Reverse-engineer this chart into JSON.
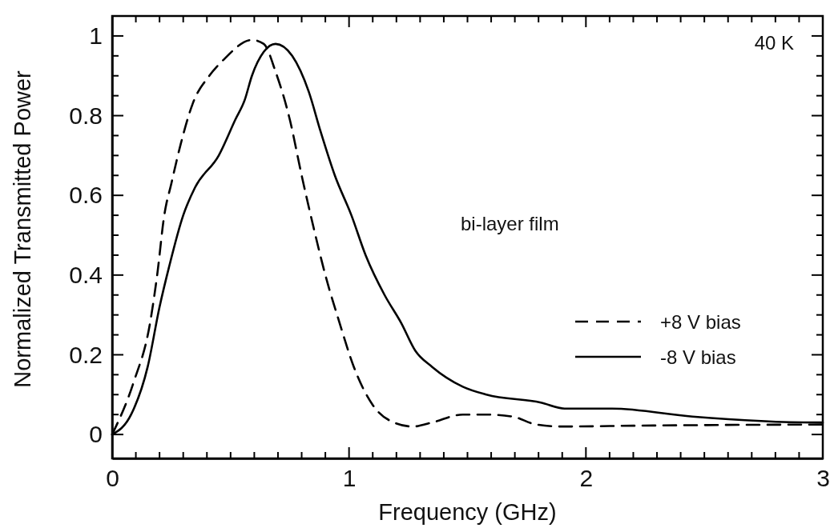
{
  "chart_data": {
    "type": "line",
    "xlabel": "Frequency (GHz)",
    "ylabel": "Normalized Transmitted Power",
    "xlim": [
      0,
      3
    ],
    "ylim": [
      -0.06,
      1.05
    ],
    "xticks": [
      0,
      {
        "value": 0.1,
        "label": null
      },
      {
        "value": 0.2,
        "label": null
      },
      {
        "value": 0.3,
        "label": null
      },
      {
        "value": 0.4,
        "label": null
      },
      {
        "value": 0.5,
        "label": null
      },
      {
        "value": 0.6,
        "label": null
      },
      {
        "value": 0.7,
        "label": null
      },
      {
        "value": 0.8,
        "label": null
      },
      {
        "value": 0.9,
        "label": null
      },
      1,
      {
        "value": 1.1,
        "label": null
      },
      {
        "value": 1.2,
        "label": null
      },
      {
        "value": 1.3,
        "label": null
      },
      {
        "value": 1.4,
        "label": null
      },
      {
        "value": 1.5,
        "label": null
      },
      {
        "value": 1.6,
        "label": null
      },
      {
        "value": 1.7,
        "label": null
      },
      {
        "value": 1.8,
        "label": null
      },
      {
        "value": 1.9,
        "label": null
      },
      2,
      {
        "value": 2.1,
        "label": null
      },
      {
        "value": 2.2,
        "label": null
      },
      {
        "value": 2.3,
        "label": null
      },
      {
        "value": 2.4,
        "label": null
      },
      {
        "value": 2.5,
        "label": null
      },
      {
        "value": 2.6,
        "label": null
      },
      {
        "value": 2.7,
        "label": null
      },
      {
        "value": 2.8,
        "label": null
      },
      {
        "value": 2.9,
        "label": null
      },
      3
    ],
    "yticks": [
      0,
      {
        "value": 0.05,
        "label": null
      },
      {
        "value": 0.1,
        "label": null
      },
      {
        "value": 0.15,
        "label": null
      },
      0.2,
      {
        "value": 0.25,
        "label": null
      },
      {
        "value": 0.3,
        "label": null
      },
      {
        "value": 0.35,
        "label": null
      },
      0.4,
      {
        "value": 0.45,
        "label": null
      },
      {
        "value": 0.5,
        "label": null
      },
      {
        "value": 0.55,
        "label": null
      },
      0.6,
      {
        "value": 0.65,
        "label": null
      },
      {
        "value": 0.7,
        "label": null
      },
      {
        "value": 0.75,
        "label": null
      },
      0.8,
      {
        "value": 0.85,
        "label": null
      },
      {
        "value": 0.9,
        "label": null
      },
      {
        "value": 0.95,
        "label": null
      },
      1
    ],
    "grid": false,
    "legend": "bottom right",
    "annotations": [
      "40 K",
      "bi-layer film"
    ],
    "series": [
      {
        "name": "+8 V bias",
        "color": "#000000",
        "line_style": "dashed",
        "x": [
          0,
          0.09,
          0.16,
          0.19,
          0.22,
          0.25,
          0.29,
          0.34,
          0.41,
          0.47,
          0.59,
          0.64,
          0.69,
          0.75,
          0.8,
          0.85,
          0.9,
          0.96,
          1.02,
          1.1,
          1.19,
          1.27,
          1.35,
          1.48,
          1.58,
          1.69,
          1.79,
          1.9,
          2.2,
          2.6,
          3
        ],
        "values": [
          0,
          0.13,
          0.28,
          0.4,
          0.55,
          0.63,
          0.73,
          0.83,
          0.9,
          0.94,
          0.99,
          0.98,
          0.91,
          0.79,
          0.65,
          0.52,
          0.4,
          0.28,
          0.17,
          0.074,
          0.03,
          0.02,
          0.03,
          0.05,
          0.05,
          0.045,
          0.025,
          0.02,
          0.022,
          0.024,
          0.025
        ]
      },
      {
        "name": "-8 V bias",
        "color": "#000000",
        "line_style": "solid",
        "x": [
          0,
          0.08,
          0.15,
          0.2,
          0.24,
          0.3,
          0.35,
          0.45,
          0.52,
          0.56,
          0.59,
          0.64,
          0.69,
          0.76,
          0.83,
          0.88,
          0.94,
          1.01,
          1.07,
          1.15,
          1.22,
          1.28,
          1.35,
          1.48,
          1.58,
          1.81,
          1.91,
          2.11,
          2.45,
          2.97,
          3
        ],
        "values": [
          0,
          0.05,
          0.17,
          0.32,
          0.42,
          0.55,
          0.62,
          0.7,
          0.79,
          0.84,
          0.9,
          0.96,
          0.98,
          0.95,
          0.86,
          0.76,
          0.65,
          0.55,
          0.45,
          0.35,
          0.28,
          0.21,
          0.17,
          0.12,
          0.1,
          0.08,
          0.065,
          0.065,
          0.045,
          0.03,
          0.03
        ]
      }
    ]
  }
}
